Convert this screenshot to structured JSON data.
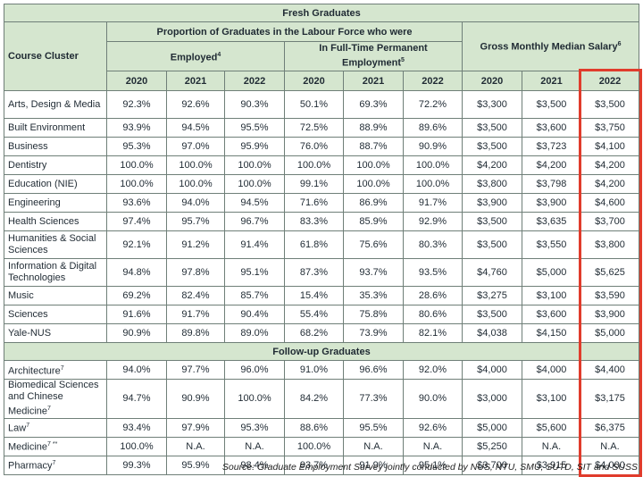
{
  "title": "Fresh Graduates",
  "header": {
    "course_cluster": "Course Cluster",
    "proportion_group": "Proportion of Graduates in the Labour Force who were",
    "employed": "Employed",
    "employed_note": "4",
    "fulltime": "In Full-Time Permanent Employment",
    "fulltime_note": "5",
    "salary": "Gross Monthly Median Salary",
    "salary_note": "6",
    "years": [
      "2020",
      "2021",
      "2022",
      "2020",
      "2021",
      "2022",
      "2020",
      "2021",
      "2022"
    ]
  },
  "fresh_rows": [
    {
      "course": "Arts, Design & Media",
      "cells": [
        "92.3%",
        "92.6%",
        "90.3%",
        "50.1%",
        "69.3%",
        "72.2%",
        "$3,300",
        "$3,500",
        "$3,500"
      ]
    },
    {
      "course": "Built Environment",
      "cells": [
        "93.9%",
        "94.5%",
        "95.5%",
        "72.5%",
        "88.9%",
        "89.6%",
        "$3,500",
        "$3,600",
        "$3,750"
      ]
    },
    {
      "course": "Business",
      "cells": [
        "95.3%",
        "97.0%",
        "95.9%",
        "76.0%",
        "88.7%",
        "90.9%",
        "$3,500",
        "$3,723",
        "$4,100"
      ]
    },
    {
      "course": "Dentistry",
      "cells": [
        "100.0%",
        "100.0%",
        "100.0%",
        "100.0%",
        "100.0%",
        "100.0%",
        "$4,200",
        "$4,200",
        "$4,200"
      ]
    },
    {
      "course": "Education (NIE)",
      "cells": [
        "100.0%",
        "100.0%",
        "100.0%",
        "99.1%",
        "100.0%",
        "100.0%",
        "$3,800",
        "$3,798",
        "$4,200"
      ]
    },
    {
      "course": "Engineering",
      "cells": [
        "93.6%",
        "94.0%",
        "94.5%",
        "71.6%",
        "86.9%",
        "91.7%",
        "$3,900",
        "$3,900",
        "$4,600"
      ]
    },
    {
      "course": "Health Sciences",
      "cells": [
        "97.4%",
        "95.7%",
        "96.7%",
        "83.3%",
        "85.9%",
        "92.9%",
        "$3,500",
        "$3,635",
        "$3,700"
      ]
    },
    {
      "course": "Humanities & Social Sciences",
      "cells": [
        "92.1%",
        "91.2%",
        "91.4%",
        "61.8%",
        "75.6%",
        "80.3%",
        "$3,500",
        "$3,550",
        "$3,800"
      ]
    },
    {
      "course": "Information & Digital Technologies",
      "cells": [
        "94.8%",
        "97.8%",
        "95.1%",
        "87.3%",
        "93.7%",
        "93.5%",
        "$4,760",
        "$5,000",
        "$5,625"
      ]
    },
    {
      "course": "Music",
      "cells": [
        "69.2%",
        "82.4%",
        "85.7%",
        "15.4%",
        "35.3%",
        "28.6%",
        "$3,275",
        "$3,100",
        "$3,590"
      ]
    },
    {
      "course": "Sciences",
      "cells": [
        "91.6%",
        "91.7%",
        "90.4%",
        "55.4%",
        "75.8%",
        "80.6%",
        "$3,500",
        "$3,600",
        "$3,900"
      ]
    },
    {
      "course": "Yale-NUS",
      "cells": [
        "90.9%",
        "89.8%",
        "89.0%",
        "68.2%",
        "73.9%",
        "82.1%",
        "$4,038",
        "$4,150",
        "$5,000"
      ]
    }
  ],
  "followup_title": "Follow-up Graduates",
  "followup_rows": [
    {
      "course": "Architecture",
      "note": "7",
      "cells": [
        "94.0%",
        "97.7%",
        "96.0%",
        "91.0%",
        "96.6%",
        "92.0%",
        "$4,000",
        "$4,000",
        "$4,400"
      ]
    },
    {
      "course": "Biomedical Sciences and Chinese Medicine",
      "note": "7",
      "cells": [
        "94.7%",
        "90.9%",
        "100.0%",
        "84.2%",
        "77.3%",
        "90.0%",
        "$3,000",
        "$3,100",
        "$3,175"
      ]
    },
    {
      "course": "Law",
      "note": "7",
      "cells": [
        "93.4%",
        "97.9%",
        "95.3%",
        "88.6%",
        "95.5%",
        "92.6%",
        "$5,000",
        "$5,600",
        "$6,375"
      ]
    },
    {
      "course": "Medicine",
      "note": "7 **",
      "cells": [
        "100.0%",
        "N.A.",
        "N.A.",
        "100.0%",
        "N.A.",
        "N.A.",
        "$5,250",
        "N.A.",
        "N.A."
      ]
    },
    {
      "course": "Pharmacy",
      "note": "7",
      "cells": [
        "99.3%",
        "95.9%",
        "98.4%",
        "93.7%",
        "91.9%",
        "95.1%",
        "$3,700",
        "$3,915",
        "$4,000"
      ]
    }
  ],
  "source": "Source: Graduate Employment Survey jointly conducted by NUS, NTU, SMU, SUTD, SIT and SUSS",
  "highlight_color": "#e03c2c",
  "header_color": "#d5e6cf"
}
